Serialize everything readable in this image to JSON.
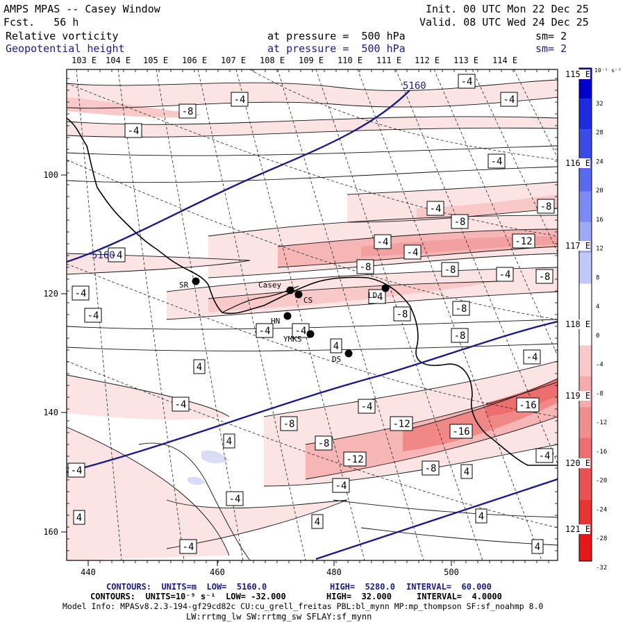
{
  "header": {
    "title": "AMPS MPAS -- Casey Window",
    "forecast": "Fcst.   56 h",
    "init": "Init. 00 UTC Mon 22 Dec 25",
    "valid": "Valid. 08 UTC Wed 24 Dec 25",
    "field1_name": "Relative vorticity",
    "field1_level": "at pressure =  500 hPa",
    "field1_sm": "sm= 2",
    "field2_name": "Geopotential height",
    "field2_level": "at pressure =  500 hPa",
    "field2_sm": "sm= 2"
  },
  "top_lon_labels": [
    "103 E",
    "104 E",
    "105 E",
    "106 E",
    "107 E",
    "108 E",
    "109 E",
    "110 E",
    "111 E",
    "112 E",
    "113 E",
    "114 E"
  ],
  "right_lon_labels": [
    "115 E",
    "116 E",
    "117 E",
    "118 E",
    "119 E",
    "120 E",
    "121 E"
  ],
  "x_ticks": [
    "440",
    "460",
    "480",
    "500"
  ],
  "y_ticks": [
    "100",
    "120",
    "140",
    "160"
  ],
  "stations": [
    {
      "id": "SR",
      "label": "SR"
    },
    {
      "id": "Casey",
      "label": "Casey"
    },
    {
      "id": "CS",
      "label": "CS"
    },
    {
      "id": "LD",
      "label": "LD"
    },
    {
      "id": "HN",
      "label": "HN"
    },
    {
      "id": "YMKS",
      "label": "YMKS"
    },
    {
      "id": "DS",
      "label": "DS"
    }
  ],
  "contour_labels": {
    "height_5160": "5160",
    "vals": [
      "-4",
      "-8",
      "-12",
      "-16",
      "4"
    ]
  },
  "colorbar": {
    "unit": "10⁻⁵ s⁻¹",
    "ticks": [
      "32",
      "28",
      "24",
      "20",
      "16",
      "12",
      "8",
      "4",
      "0",
      "-4",
      "-8",
      "-12",
      "-16",
      "-20",
      "-24",
      "-28",
      "-32"
    ]
  },
  "footer": {
    "line1_prefix": "CONTOURS:  UNITS=m  LOW=  5160.0",
    "line1_high": "HIGH=  5280.0",
    "line1_int": "INTERVAL=  60.000",
    "line2_prefix": "CONTOURS:  UNITS=10⁻⁵ s⁻¹  LOW= -32.000",
    "line2_high": "HIGH=  32.000",
    "line2_int": "INTERVAL=  4.0000",
    "model1": "Model Info: MPASv8.2.3-194-gf29cd82c CU:cu_grell_freitas PBL:bl_mynn MP:mp_thompson SF:sf_noahmp 8.0",
    "model2": "LW:rrtmg_lw SW:rrtmg_sw SFLAY:sf_mynn"
  }
}
